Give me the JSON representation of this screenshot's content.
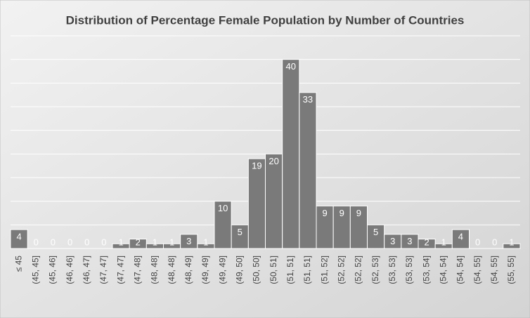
{
  "chart_data": {
    "type": "bar",
    "title": "Distribution of Percentage Female Population by Number of Countries",
    "categories": [
      "≤ 45",
      "(45, 45]",
      "(45, 46]",
      "(46, 46]",
      "(46, 47]",
      "(47, 47]",
      "(47, 47]",
      "(47, 48]",
      "(48, 48]",
      "(48, 48]",
      "(48, 49]",
      "(49, 49]",
      "(49, 49]",
      "(49, 50]",
      "(50, 50]",
      "(50, 51]",
      "(51, 51]",
      "(51, 51]",
      "(51, 52]",
      "(52, 52]",
      "(52, 52]",
      "(52, 53]",
      "(53, 53]",
      "(53, 53]",
      "(53, 54]",
      "(54, 54]",
      "(54, 54]",
      "(54, 55]",
      "(54, 55]",
      "(55, 55]"
    ],
    "values": [
      4,
      0,
      0,
      0,
      0,
      0,
      1,
      2,
      1,
      1,
      3,
      1,
      10,
      5,
      19,
      20,
      40,
      33,
      9,
      9,
      9,
      5,
      3,
      3,
      2,
      1,
      4,
      0,
      0,
      1
    ],
    "color": "#7a7a7a",
    "ylim": [
      0,
      45
    ],
    "yticks": [
      0,
      5,
      10,
      15,
      20,
      25,
      30,
      35,
      40,
      45
    ],
    "grid": true
  }
}
